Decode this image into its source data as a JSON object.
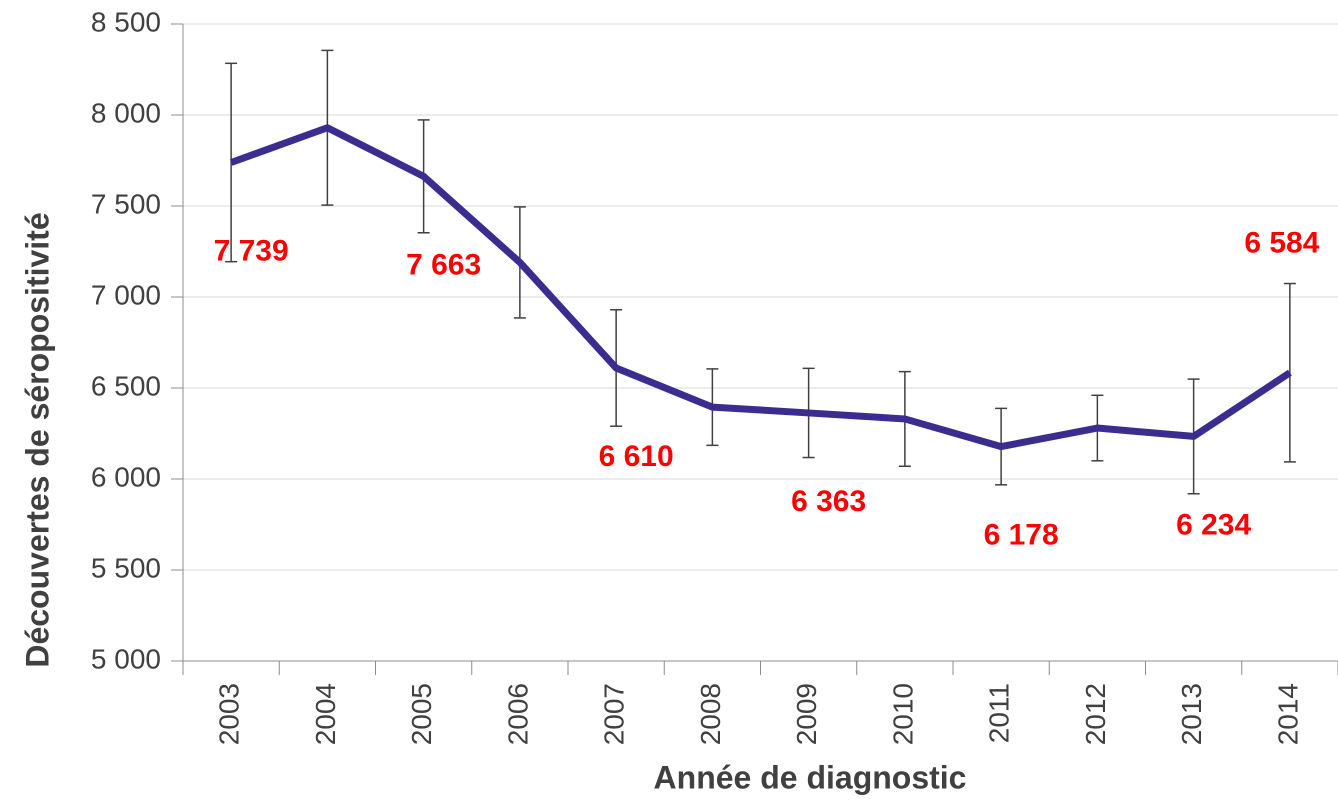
{
  "chart_data": {
    "type": "line",
    "x_label": "Année de diagnostic",
    "y_label": "Découvertes de séropositivité",
    "categories": [
      "2003",
      "2004",
      "2005",
      "2006",
      "2007",
      "2008",
      "2009",
      "2010",
      "2011",
      "2012",
      "2013",
      "2014"
    ],
    "series": [
      {
        "name": "Découvertes",
        "color": "#3b2d8f",
        "values": [
          7739,
          7930,
          7663,
          7190,
          6610,
          6395,
          6363,
          6330,
          6178,
          6280,
          6234,
          6584
        ],
        "errors": [
          545,
          425,
          310,
          305,
          320,
          210,
          245,
          260,
          210,
          180,
          315,
          490
        ],
        "value_labels": [
          "7 739",
          null,
          "7 663",
          null,
          "6 610",
          null,
          "6 363",
          null,
          "6 178",
          null,
          "6 234",
          "6 584"
        ]
      }
    ],
    "ylim": [
      5000,
      8500
    ],
    "yticks": [
      {
        "value": 5000,
        "label": "5 000"
      },
      {
        "value": 5500,
        "label": "5 500"
      },
      {
        "value": 6000,
        "label": "6 000"
      },
      {
        "value": 6500,
        "label": "6 500"
      },
      {
        "value": 7000,
        "label": "7 000"
      },
      {
        "value": 7500,
        "label": "7 500"
      },
      {
        "value": 8000,
        "label": "8 000"
      },
      {
        "value": 8500,
        "label": "8 500"
      }
    ],
    "grid": true,
    "label_color": "#ff0000",
    "error_color": "#404040"
  }
}
